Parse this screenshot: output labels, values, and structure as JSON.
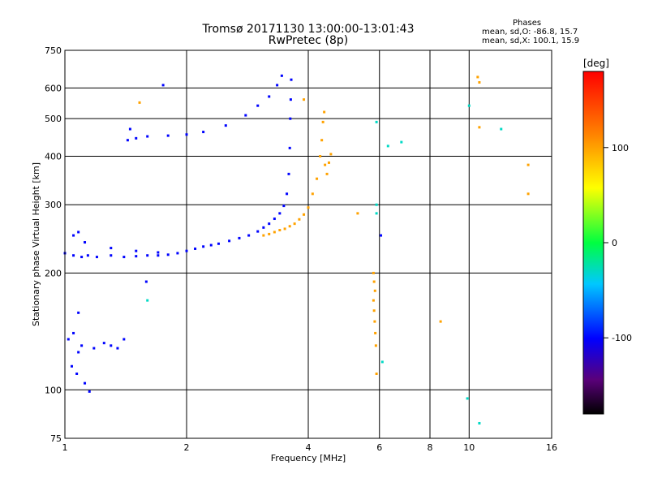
{
  "title_line1": "Tromsø 20171130 13:00:00-13:01:43",
  "title_line2": "RwPretec (8p)",
  "phases_box": {
    "heading": "Phases",
    "line_o": "mean, sd,O: -86.8, 15.7",
    "line_x": "mean, sd,X: 100.1, 15.9"
  },
  "chart_data": {
    "type": "scatter",
    "xlabel": "Frequency [MHz]",
    "ylabel": "Stationary phase Virtual Height [km]",
    "x_scale": "log",
    "y_scale": "log",
    "xlim": [
      1,
      16
    ],
    "ylim": [
      75,
      750
    ],
    "grid": true,
    "x_ticks": [
      1,
      2,
      4,
      6,
      8,
      10,
      16
    ],
    "y_ticks": [
      75,
      100,
      200,
      300,
      400,
      500,
      600,
      750
    ],
    "colorbar": {
      "label": "[deg]",
      "range": [
        -180,
        180
      ],
      "ticks": [
        100,
        0,
        -100
      ],
      "colormap": "rainbow"
    },
    "series": [
      {
        "mode": "O",
        "phase_deg": -100,
        "points": [
          [
            1.0,
            225
          ],
          [
            1.05,
            222
          ],
          [
            1.1,
            220
          ],
          [
            1.14,
            222
          ],
          [
            1.2,
            220
          ],
          [
            1.3,
            222
          ],
          [
            1.4,
            220
          ],
          [
            1.5,
            221
          ],
          [
            1.6,
            222
          ],
          [
            1.7,
            222
          ],
          [
            1.8,
            223
          ],
          [
            1.9,
            225
          ],
          [
            2.0,
            228
          ],
          [
            2.1,
            231
          ],
          [
            2.2,
            234
          ],
          [
            2.3,
            236
          ],
          [
            2.4,
            238
          ],
          [
            2.55,
            242
          ],
          [
            2.7,
            246
          ],
          [
            2.85,
            250
          ],
          [
            3.0,
            256
          ],
          [
            3.1,
            262
          ],
          [
            3.2,
            268
          ],
          [
            3.3,
            276
          ],
          [
            3.4,
            285
          ],
          [
            3.48,
            298
          ],
          [
            3.54,
            320
          ],
          [
            3.58,
            360
          ],
          [
            3.6,
            420
          ],
          [
            3.61,
            500
          ],
          [
            3.62,
            560
          ],
          [
            3.63,
            630
          ],
          [
            1.05,
            250
          ],
          [
            1.08,
            255
          ],
          [
            1.12,
            240
          ],
          [
            1.3,
            232
          ],
          [
            1.5,
            228
          ],
          [
            1.7,
            226
          ],
          [
            1.43,
            440
          ],
          [
            1.5,
            445
          ],
          [
            1.6,
            450
          ],
          [
            1.8,
            452
          ],
          [
            2.0,
            455
          ],
          [
            2.2,
            462
          ],
          [
            2.5,
            480
          ],
          [
            2.8,
            510
          ],
          [
            3.0,
            540
          ],
          [
            3.2,
            570
          ],
          [
            3.35,
            610
          ],
          [
            3.44,
            645
          ],
          [
            1.45,
            470
          ],
          [
            1.75,
            610
          ],
          [
            1.02,
            135
          ],
          [
            1.05,
            140
          ],
          [
            1.08,
            125
          ],
          [
            1.1,
            130
          ],
          [
            1.04,
            115
          ],
          [
            1.07,
            110
          ],
          [
            1.12,
            104
          ],
          [
            1.15,
            99
          ],
          [
            1.18,
            128
          ],
          [
            1.25,
            132
          ],
          [
            1.3,
            130
          ],
          [
            1.35,
            128
          ],
          [
            1.4,
            135
          ],
          [
            1.08,
            158
          ],
          [
            6.05,
            250
          ],
          [
            1.59,
            190
          ]
        ]
      },
      {
        "mode": "X",
        "phase_deg": 100,
        "points": [
          [
            3.1,
            250
          ],
          [
            3.2,
            252
          ],
          [
            3.3,
            255
          ],
          [
            3.4,
            258
          ],
          [
            3.5,
            260
          ],
          [
            3.6,
            264
          ],
          [
            3.7,
            268
          ],
          [
            3.8,
            275
          ],
          [
            3.9,
            283
          ],
          [
            4.0,
            295
          ],
          [
            4.1,
            320
          ],
          [
            4.2,
            350
          ],
          [
            4.28,
            400
          ],
          [
            4.32,
            440
          ],
          [
            4.35,
            490
          ],
          [
            4.38,
            520
          ],
          [
            4.45,
            360
          ],
          [
            4.5,
            385
          ],
          [
            4.55,
            405
          ],
          [
            4.4,
            380
          ],
          [
            5.8,
            200
          ],
          [
            5.82,
            190
          ],
          [
            5.85,
            180
          ],
          [
            5.8,
            170
          ],
          [
            5.82,
            160
          ],
          [
            5.84,
            150
          ],
          [
            5.86,
            140
          ],
          [
            5.88,
            130
          ],
          [
            5.9,
            110
          ],
          [
            5.3,
            285
          ],
          [
            3.9,
            560
          ],
          [
            1.53,
            550
          ],
          [
            10.6,
            620
          ],
          [
            10.5,
            640
          ],
          [
            10.6,
            475
          ],
          [
            14.0,
            380
          ],
          [
            14.0,
            320
          ],
          [
            8.5,
            150
          ]
        ]
      },
      {
        "mode": "misc",
        "phase_deg": -30,
        "points": [
          [
            5.9,
            490
          ],
          [
            6.3,
            425
          ],
          [
            6.8,
            435
          ],
          [
            5.9,
            300
          ],
          [
            5.9,
            285
          ],
          [
            6.1,
            118
          ],
          [
            9.9,
            95
          ],
          [
            10.6,
            82
          ],
          [
            12.0,
            470
          ],
          [
            10.0,
            540
          ],
          [
            1.6,
            170
          ]
        ]
      }
    ]
  }
}
